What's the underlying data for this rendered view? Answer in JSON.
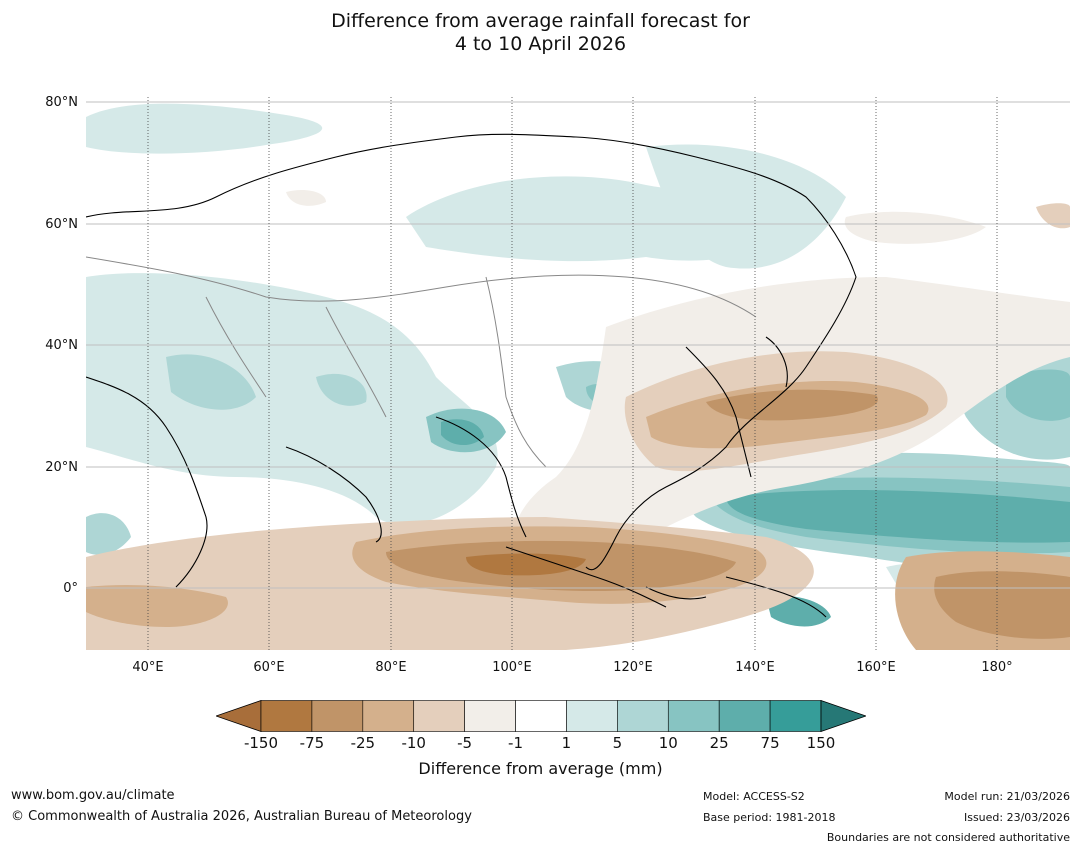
{
  "title": {
    "line1": "Difference from average rainfall forecast for",
    "line2": "4 to 10 April 2026"
  },
  "map": {
    "lat_labels": [
      "80°N",
      "60°N",
      "40°N",
      "20°N",
      "0°"
    ],
    "lon_labels": [
      "40°E",
      "60°E",
      "80°E",
      "100°E",
      "120°E",
      "140°E",
      "160°E",
      "180°"
    ]
  },
  "colorbar": {
    "ticks": [
      "-150",
      "-75",
      "-25",
      "-10",
      "-5",
      "-1",
      "1",
      "5",
      "10",
      "25",
      "75",
      "150"
    ],
    "colors": [
      "#a86e3a",
      "#b07840",
      "#c09468",
      "#d4b08c",
      "#e4cfbc",
      "#f2eee9",
      "#ffffff",
      "#d5e9e8",
      "#aed6d5",
      "#87c4c2",
      "#5eaeab",
      "#369d99",
      "#267876"
    ],
    "title": "Difference from average (mm)"
  },
  "footer": {
    "website": "www.bom.gov.au/climate",
    "copyright": "© Commonwealth of Australia 2026, Australian Bureau of Meteorology",
    "model": "Model: ACCESS-S2",
    "base_period": "Base period: 1981-2018",
    "model_run": "Model run: 21/03/2026",
    "issued": "Issued: 23/03/2026",
    "disclaimer": "Boundaries are not considered authoritative"
  }
}
